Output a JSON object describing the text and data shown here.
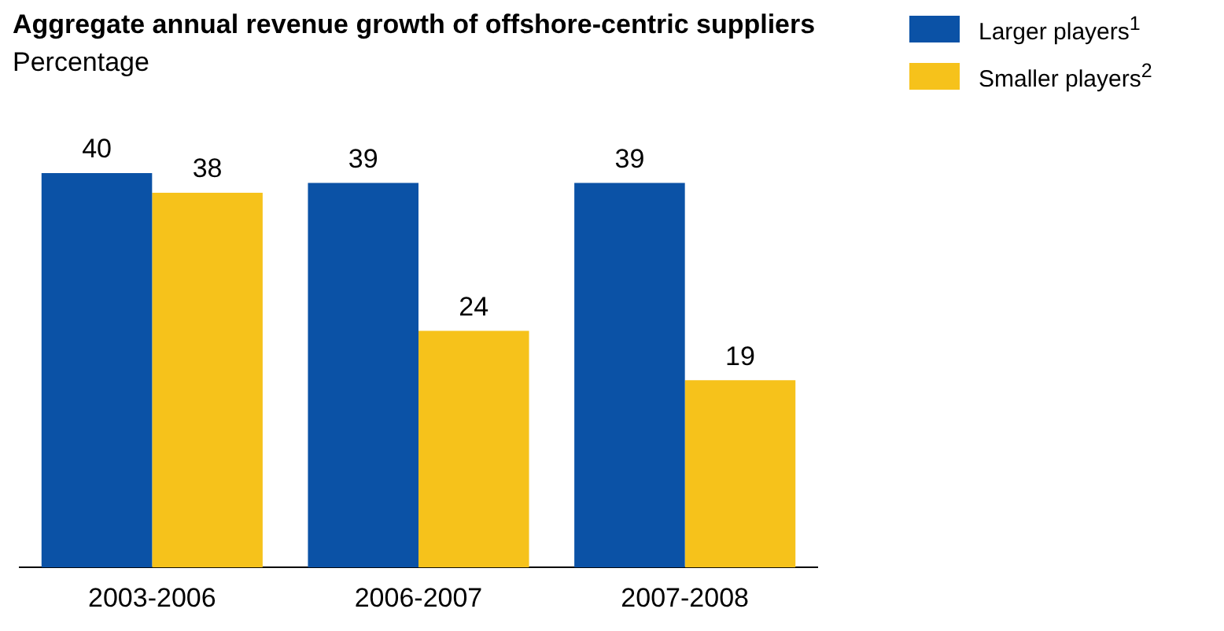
{
  "chart_data": {
    "type": "bar",
    "title": "Aggregate annual revenue growth of offshore-centric suppliers",
    "subtitle": "Percentage",
    "categories": [
      "2003-2006",
      "2006-2007",
      "2007-2008"
    ],
    "series": [
      {
        "name": "Larger players$^{1}$",
        "color": "#0b52a6",
        "values": [
          40,
          39,
          39
        ]
      },
      {
        "name": "Smaller players$^{2}$",
        "color": "#f6c21b",
        "values": [
          38,
          24,
          19
        ]
      }
    ],
    "data_labels": true,
    "legend": "top right",
    "grid": false
  }
}
